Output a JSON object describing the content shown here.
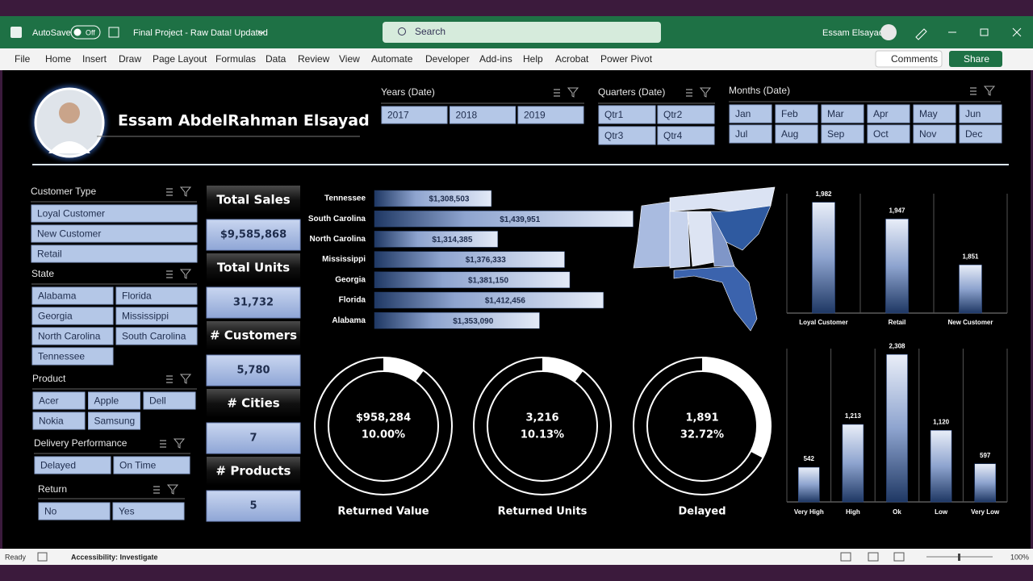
{
  "titlebar": {
    "autosave": "AutoSave",
    "toggle": "Off",
    "filename": "Final Project - Raw Data! Updated",
    "search": "Search",
    "user": "Essam Elsayad"
  },
  "menu": [
    "File",
    "Home",
    "Insert",
    "Draw",
    "Page Layout",
    "Formulas",
    "Data",
    "Review",
    "View",
    "Automate",
    "Developer",
    "Add-ins",
    "Help",
    "Acrobat",
    "Power Pivot"
  ],
  "buttons": {
    "comments": "Comments",
    "share": "Share"
  },
  "dashboard": {
    "name": "Essam AbdelRahman Elsayad"
  },
  "slicers": {
    "years": {
      "title": "Years (Date)",
      "items": [
        "2017",
        "2018",
        "2019"
      ]
    },
    "quarters": {
      "title": "Quarters (Date)",
      "items": [
        "Qtr1",
        "Qtr2",
        "Qtr3",
        "Qtr4"
      ]
    },
    "months": {
      "title": "Months (Date)",
      "items": [
        "Jan",
        "Feb",
        "Mar",
        "Apr",
        "May",
        "Jun",
        "Jul",
        "Aug",
        "Sep",
        "Oct",
        "Nov",
        "Dec"
      ]
    },
    "customer_type": {
      "title": "Customer Type",
      "items": [
        "Loyal Customer",
        "New Customer",
        "Retail"
      ]
    },
    "state": {
      "title": "State",
      "items": [
        "Alabama",
        "Florida",
        "Georgia",
        "Mississippi",
        "North Carolina",
        "South Carolina",
        "Tennessee"
      ]
    },
    "product": {
      "title": "Product",
      "items": [
        "Acer",
        "Apple",
        "Dell",
        "Nokia",
        "Samsung"
      ]
    },
    "delivery": {
      "title": "Delivery Performance",
      "items": [
        "Delayed",
        "On Time"
      ]
    },
    "return": {
      "title": "Return",
      "items": [
        "No",
        "Yes"
      ]
    }
  },
  "kpis": [
    {
      "label": "Total Sales",
      "value": "$9,585,868"
    },
    {
      "label": "Total Units",
      "value": "31,732"
    },
    {
      "label": "# Customers",
      "value": "5,780"
    },
    {
      "label": "# Cities",
      "value": "7"
    },
    {
      "label": "# Products",
      "value": "5"
    }
  ],
  "chart_data": [
    {
      "type": "hbar",
      "categories": [
        "Tennessee",
        "South Carolina",
        "North Carolina",
        "Mississippi",
        "Georgia",
        "Florida",
        "Alabama"
      ],
      "values": [
        1308503,
        1439951,
        1314385,
        1376333,
        1381150,
        1412456,
        1353090
      ],
      "value_labels": [
        "$1,308,503",
        "$1,439,951",
        "$1,314,385",
        "$1,376,333",
        "$1,381,150",
        "$1,412,456",
        "$1,353,090"
      ],
      "xlim": [
        1200000,
        1450000
      ],
      "color": "#1f3864"
    },
    {
      "type": "bar",
      "categories": [
        "Loyal Customer",
        "Retail",
        "New Customer"
      ],
      "values": [
        1982,
        1947,
        1851
      ],
      "value_labels": [
        "1,982",
        "1,947",
        "1,851"
      ],
      "ylim": [
        1750,
        2000
      ],
      "color": "#2f4f8f"
    },
    {
      "type": "bar",
      "categories": [
        "Very High",
        "High",
        "Ok",
        "Low",
        "Very Low"
      ],
      "values": [
        542,
        1213,
        2308,
        1120,
        597
      ],
      "value_labels": [
        "542",
        "1,213",
        "2,308",
        "1,120",
        "597"
      ],
      "ylim": [
        0,
        2400
      ],
      "color": "#2f4f8f"
    },
    {
      "type": "donut",
      "title": "Returned Value",
      "subtitle": "$958,284",
      "values": [
        10.0
      ],
      "value_labels": [
        "10.00%"
      ],
      "color": "#ffffff"
    },
    {
      "type": "donut",
      "title": "Returned Units",
      "subtitle": "3,216",
      "values": [
        10.13
      ],
      "value_labels": [
        "10.13%"
      ],
      "color": "#ffffff"
    },
    {
      "type": "donut",
      "title": "Delayed",
      "subtitle": "1,891",
      "values": [
        32.72
      ],
      "value_labels": [
        "32.72%"
      ],
      "color": "#ffffff"
    }
  ],
  "status": {
    "ready": "Ready",
    "accessibility": "Accessibility: Investigate",
    "zoom": "100%"
  }
}
